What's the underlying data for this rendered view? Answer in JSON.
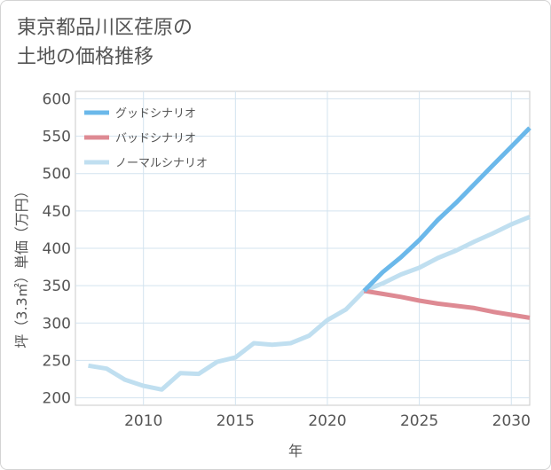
{
  "title_line1": "東京都品川区荏原の",
  "title_line2": "土地の価格推移",
  "chart_data": {
    "type": "line",
    "xlabel": "年",
    "ylabel": "坪（3.3㎡）単価（万円）",
    "xlim": [
      2006.3,
      2031
    ],
    "ylim": [
      190,
      610
    ],
    "x_ticks": [
      2010,
      2015,
      2020,
      2025,
      2030
    ],
    "y_ticks": [
      200,
      250,
      300,
      350,
      400,
      450,
      500,
      550,
      600
    ],
    "grid": true,
    "legend_position": "top-left",
    "series": [
      {
        "name": "グッドシナリオ",
        "color": "#6bb8ea",
        "x": [
          2022,
          2023,
          2024,
          2025,
          2026,
          2027,
          2028,
          2029,
          2030,
          2031
        ],
        "y": [
          343,
          368,
          388,
          411,
          438,
          461,
          486,
          511,
          536,
          561
        ]
      },
      {
        "name": "バッドシナリオ",
        "color": "#de8a93",
        "x": [
          2022,
          2023,
          2024,
          2025,
          2026,
          2027,
          2028,
          2029,
          2030,
          2031
        ],
        "y": [
          343,
          339,
          335,
          330,
          326,
          323,
          320,
          315,
          311,
          307
        ]
      },
      {
        "name": "ノーマルシナリオ",
        "color": "#c0dff0",
        "x": [
          2007,
          2008,
          2009,
          2010,
          2011,
          2012,
          2013,
          2014,
          2015,
          2016,
          2017,
          2018,
          2019,
          2020,
          2021,
          2022,
          2023,
          2024,
          2025,
          2026,
          2027,
          2028,
          2029,
          2030,
          2031
        ],
        "y": [
          243,
          239,
          224,
          216,
          211,
          233,
          232,
          248,
          254,
          273,
          271,
          273,
          283,
          304,
          318,
          343,
          353,
          365,
          374,
          387,
          397,
          409,
          420,
          432,
          442
        ]
      }
    ]
  }
}
